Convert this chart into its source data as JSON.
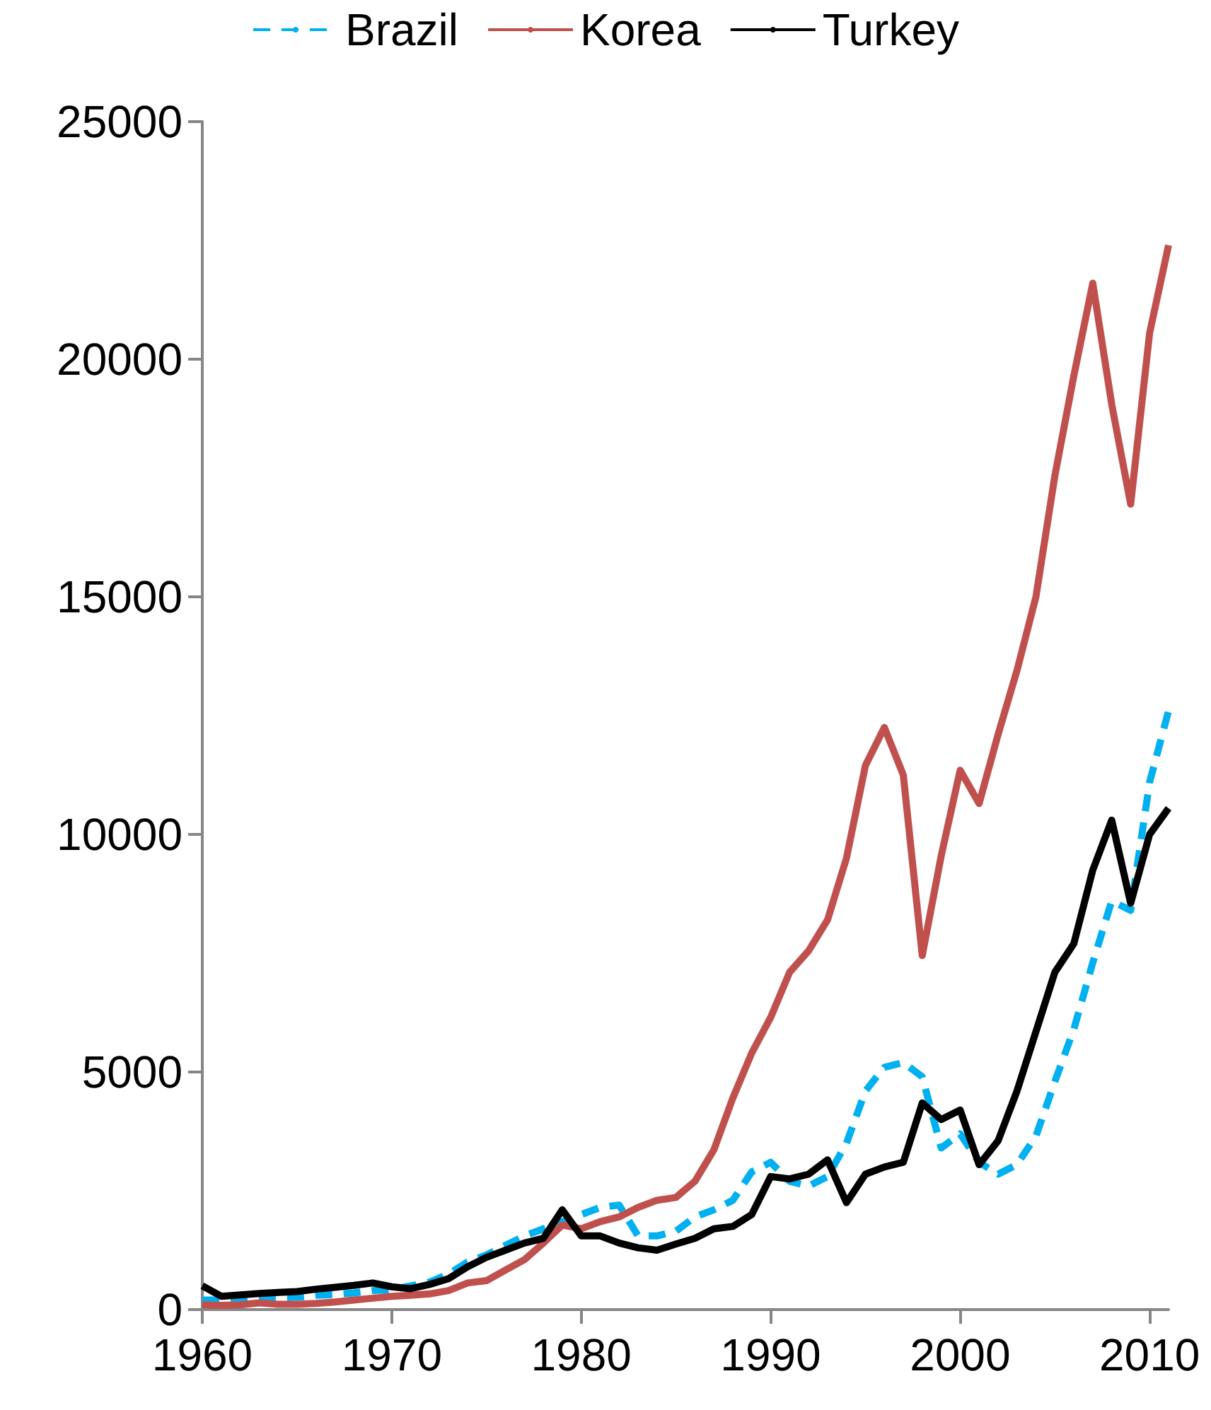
{
  "chart_data": {
    "type": "line",
    "x": [
      1960,
      1961,
      1962,
      1963,
      1964,
      1965,
      1966,
      1967,
      1968,
      1969,
      1970,
      1971,
      1972,
      1973,
      1974,
      1975,
      1976,
      1977,
      1978,
      1979,
      1980,
      1981,
      1982,
      1983,
      1984,
      1985,
      1986,
      1987,
      1988,
      1989,
      1990,
      1991,
      1992,
      1993,
      1994,
      1995,
      1996,
      1997,
      1998,
      1999,
      2000,
      2001,
      2002,
      2003,
      2004,
      2005,
      2006,
      2007,
      2008,
      2009,
      2010,
      2011
    ],
    "series": [
      {
        "name": "Brazil",
        "color": "#00b0f0",
        "line_style": "dashed",
        "values": [
          200,
          200,
          220,
          250,
          250,
          260,
          300,
          320,
          350,
          400,
          420,
          500,
          580,
          750,
          1000,
          1150,
          1350,
          1550,
          1700,
          1850,
          2000,
          2150,
          2200,
          1550,
          1550,
          1650,
          1950,
          2100,
          2300,
          2900,
          3100,
          2700,
          2600,
          2800,
          3500,
          4600,
          5100,
          5200,
          4900,
          3400,
          3700,
          3100,
          2850,
          3050,
          3650,
          4800,
          5900,
          7300,
          8600,
          8400,
          11100,
          12600
        ]
      },
      {
        "name": "Korea",
        "color": "#c0504d",
        "line_style": "solid",
        "values": [
          100,
          90,
          100,
          140,
          110,
          110,
          130,
          160,
          200,
          240,
          280,
          300,
          330,
          400,
          560,
          610,
          830,
          1050,
          1400,
          1780,
          1700,
          1850,
          1950,
          2150,
          2300,
          2360,
          2700,
          3360,
          4450,
          5400,
          6150,
          7100,
          7550,
          8200,
          9500,
          11450,
          12250,
          11250,
          7450,
          9550,
          11350,
          10650,
          12100,
          13450,
          15000,
          17550,
          19650,
          21600,
          19050,
          16950,
          20550,
          22400
        ]
      },
      {
        "name": "Turkey",
        "color": "#000000",
        "line_style": "solid",
        "values": [
          500,
          280,
          310,
          340,
          360,
          380,
          430,
          470,
          510,
          560,
          480,
          440,
          530,
          650,
          900,
          1100,
          1250,
          1400,
          1500,
          2100,
          1550,
          1550,
          1400,
          1300,
          1250,
          1380,
          1500,
          1700,
          1750,
          2000,
          2800,
          2750,
          2850,
          3150,
          2250,
          2850,
          3000,
          3100,
          4350,
          4000,
          4200,
          3050,
          3550,
          4600,
          5850,
          7100,
          7700,
          9250,
          10300,
          8550,
          10000,
          10550
        ]
      }
    ],
    "xlim": [
      1960,
      2011
    ],
    "xticks": [
      1960,
      1970,
      1980,
      1990,
      2000,
      2010
    ],
    "ylim": [
      0,
      25000
    ],
    "yticks": [
      0,
      5000,
      10000,
      15000,
      20000,
      25000
    ],
    "grid": false,
    "legend": "top",
    "marker": "none"
  }
}
